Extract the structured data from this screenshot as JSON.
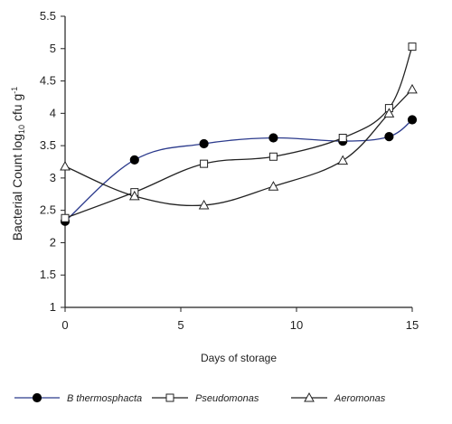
{
  "chart_data": {
    "type": "line",
    "xlabel": "Days of storage",
    "ylabel_main": "Bacterial Count log",
    "ylabel_sub": "10",
    "ylabel_unit": " cfu g",
    "ylabel_sup": "-1",
    "xlim": [
      0,
      15
    ],
    "ylim": [
      1,
      5.5
    ],
    "xticks": [
      0,
      5,
      10,
      15
    ],
    "yticks": [
      1,
      1.5,
      2,
      2.5,
      3,
      3.5,
      4,
      4.5,
      5,
      5.5
    ],
    "grid": false,
    "legend_position": "bottom",
    "series": [
      {
        "name": "B thermosphacta",
        "color": "#2b3a8c",
        "marker": "filled-circle",
        "x": [
          0,
          3,
          6,
          9,
          12,
          14,
          15
        ],
        "y": [
          2.33,
          3.28,
          3.53,
          3.62,
          3.57,
          3.64,
          3.9
        ]
      },
      {
        "name": "Pseudomonas",
        "color": "#222222",
        "marker": "open-square",
        "x": [
          0,
          3,
          6,
          9,
          12,
          14,
          15
        ],
        "y": [
          2.38,
          2.78,
          3.22,
          3.33,
          3.62,
          4.08,
          5.03
        ]
      },
      {
        "name": "Aeromonas",
        "color": "#222222",
        "marker": "open-triangle",
        "x": [
          0,
          3,
          6,
          9,
          12,
          14,
          15
        ],
        "y": [
          3.18,
          2.72,
          2.58,
          2.87,
          3.27,
          4.0,
          4.37
        ]
      }
    ]
  }
}
